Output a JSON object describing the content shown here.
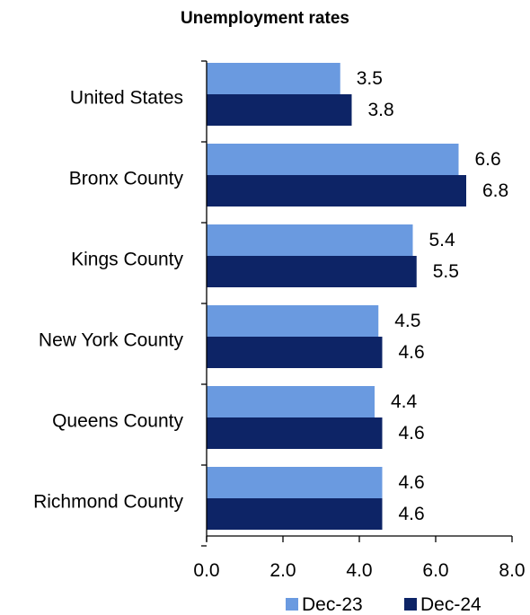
{
  "chart_data": {
    "type": "bar",
    "orientation": "horizontal",
    "title": "Unemployment rates",
    "categories": [
      "United States",
      "Bronx County",
      "Kings County",
      "New York County",
      "Queens County",
      "Richmond County"
    ],
    "series": [
      {
        "name": "Dec-23",
        "color": "#6a9ae0",
        "values": [
          3.5,
          6.6,
          5.4,
          4.5,
          4.4,
          4.6
        ]
      },
      {
        "name": "Dec-24",
        "color": "#0d2466",
        "values": [
          3.8,
          6.8,
          5.5,
          4.6,
          4.6,
          4.6
        ]
      }
    ],
    "xlim": [
      0,
      8
    ],
    "x_ticks": [
      "0.0",
      "2.0",
      "4.0",
      "6.0",
      "8.0"
    ],
    "grid": false,
    "legend_position": "bottom-right",
    "data_labels": true
  }
}
